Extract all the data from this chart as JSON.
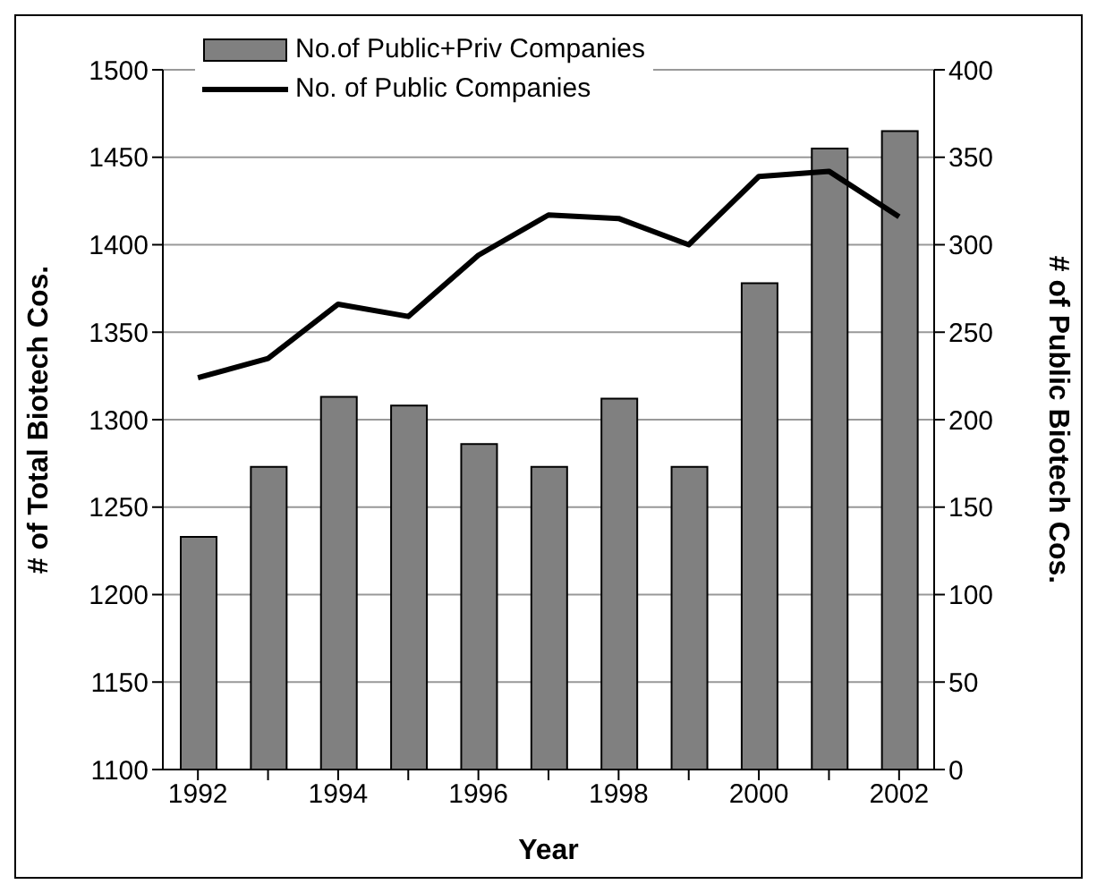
{
  "chart_data": {
    "type": "bar",
    "xlabel": "Year",
    "ylabel": "# of Total Biotech Cos.",
    "y2label": "# of Public Biotech Cos.",
    "categories": [
      "1992",
      null,
      "1994",
      null,
      "1996",
      null,
      "1998",
      null,
      "2000",
      null,
      "2002"
    ],
    "series": [
      {
        "name": "No.of Public+Priv Companies",
        "color": "#808080",
        "values": [
          1233,
          1273,
          1313,
          1308,
          1286,
          1273,
          1312,
          1273,
          1378,
          1455,
          1465
        ]
      },
      {
        "name": "No. of Public Companies",
        "type": "line",
        "axis": "y2",
        "color": "#000000",
        "values": [
          224,
          235,
          266,
          259,
          294,
          317,
          315,
          300,
          339,
          342,
          316
        ]
      }
    ],
    "ylim": [
      1100,
      1500
    ],
    "yticks": [
      1100,
      1150,
      1200,
      1250,
      1300,
      1350,
      1400,
      1450,
      1500
    ],
    "y2lim": [
      0,
      400
    ],
    "y2ticks": [
      0,
      50,
      100,
      150,
      200,
      250,
      300,
      350,
      400
    ],
    "grid": "y",
    "legend": "top left",
    "marker": "none",
    "line_style": "solid"
  }
}
